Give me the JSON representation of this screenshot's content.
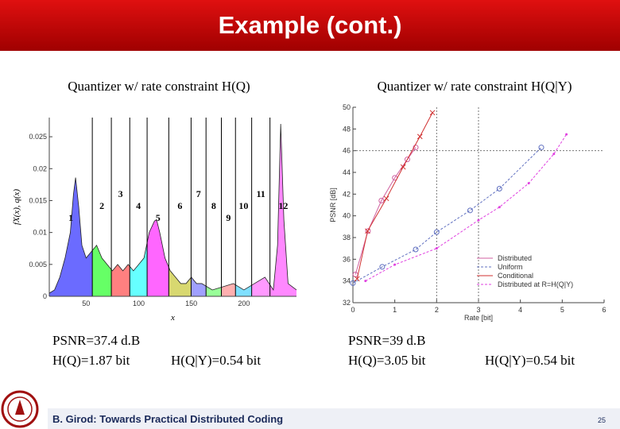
{
  "title": "Example (cont.)",
  "panels": [
    {
      "heading": "Quantizer w/ rate constraint H(Q)",
      "chart": {
        "type": "area",
        "xlabel": "x",
        "ylabel": "fX(x), q(x)",
        "xlim": [
          15,
          250
        ],
        "ylim": [
          0,
          0.028
        ],
        "xticks": [
          50,
          100,
          150,
          200
        ],
        "yticks": [
          0,
          0.005,
          0.01,
          0.015,
          0.02,
          0.025
        ],
        "x": [
          15,
          20,
          25,
          30,
          35,
          38,
          40,
          43,
          46,
          50,
          55,
          60,
          65,
          70,
          75,
          80,
          85,
          90,
          95,
          100,
          105,
          110,
          115,
          117,
          120,
          125,
          130,
          135,
          140,
          145,
          150,
          155,
          160,
          170,
          180,
          190,
          200,
          210,
          220,
          228,
          232,
          235,
          238,
          242,
          250
        ],
        "values": [
          0.0005,
          0.001,
          0.003,
          0.006,
          0.01,
          0.016,
          0.0186,
          0.014,
          0.008,
          0.006,
          0.007,
          0.008,
          0.006,
          0.005,
          0.004,
          0.005,
          0.004,
          0.005,
          0.004,
          0.005,
          0.006,
          0.01,
          0.0118,
          0.012,
          0.01,
          0.006,
          0.004,
          0.003,
          0.002,
          0.002,
          0.003,
          0.002,
          0.002,
          0.001,
          0.0015,
          0.002,
          0.001,
          0.002,
          0.003,
          0.001,
          0.008,
          0.027,
          0.012,
          0.002,
          0.001
        ],
        "boundaries": [
          55.9,
          74,
          91.5,
          108,
          128.6,
          149.8,
          164,
          178.6,
          192,
          207.4,
          224.8
        ],
        "regions": [
          {
            "label": "1",
            "color": "#6b6bff"
          },
          {
            "label": "2",
            "color": "#66ff66"
          },
          {
            "label": "3",
            "color": "#ff8080"
          },
          {
            "label": "4",
            "color": "#66ffff"
          },
          {
            "label": "5",
            "color": "#ff66ff"
          },
          {
            "label": "6",
            "color": "#d8d870"
          },
          {
            "label": "7",
            "color": "#a0a0ff"
          },
          {
            "label": "8",
            "color": "#99ff99"
          },
          {
            "label": "9",
            "color": "#ffb0b0"
          },
          {
            "label": "10",
            "color": "#80e0ff"
          },
          {
            "label": "11",
            "color": "#ff99ff"
          },
          {
            "label": "12",
            "color": "#ff88ff"
          }
        ]
      },
      "stats": [
        "PSNR=37.4 d.B",
        "H(Q)=1.87 bit",
        "H(Q|Y)=0.54 bit"
      ]
    },
    {
      "heading": "Quantizer w/ rate constraint H(Q|Y)",
      "chart": {
        "type": "line",
        "xlabel": "Rate [bit]",
        "ylabel": "PSNR [dB]",
        "xlim": [
          0,
          6
        ],
        "ylim": [
          32,
          50
        ],
        "xticks": [
          0,
          1,
          2,
          3,
          4,
          5,
          6
        ],
        "yticks": [
          32,
          34,
          36,
          38,
          40,
          42,
          44,
          46,
          48,
          50
        ],
        "ref_x": [
          2,
          3
        ],
        "ref_y": [
          46
        ],
        "legend": "lower right",
        "series": [
          {
            "name": "Distributed",
            "color": "#d060a0",
            "marker": "o",
            "dash": false,
            "x": [
              0.06,
              0.36,
              0.68,
              1.0,
              1.3,
              1.5
            ],
            "values": [
              34.6,
              38.6,
              41.4,
              43.5,
              45.2,
              46.3
            ]
          },
          {
            "name": "Uniform",
            "color": "#6070c0",
            "marker": "o",
            "dash": true,
            "x": [
              0,
              0.7,
              1.5,
              2,
              2.8,
              3.5,
              4.5
            ],
            "values": [
              33.8,
              35.3,
              36.9,
              38.5,
              40.5,
              42.5,
              46.3
            ]
          },
          {
            "name": "Conditional",
            "color": "#d03030",
            "marker": "x",
            "dash": false,
            "x": [
              0.1,
              0.35,
              0.8,
              1.2,
              1.6,
              1.9
            ],
            "values": [
              34.2,
              38.6,
              41.6,
              44.5,
              47.3,
              49.5
            ]
          },
          {
            "name": "Distributed at R=H(Q|Y)",
            "color": "#e040e0",
            "marker": ".",
            "dash": true,
            "x": [
              0.3,
              1,
              2,
              3,
              3.5,
              4.2,
              4.8,
              5.1
            ],
            "values": [
              34,
              35.5,
              37,
              39.6,
              40.8,
              43,
              45.7,
              47.5
            ]
          }
        ]
      },
      "stats": [
        "PSNR=39 d.B",
        "H(Q)=3.05 bit",
        "H(Q|Y)=0.54 bit"
      ]
    }
  ],
  "footer": {
    "text": "B. Girod: Towards Practical Distributed Coding",
    "page": "25"
  }
}
